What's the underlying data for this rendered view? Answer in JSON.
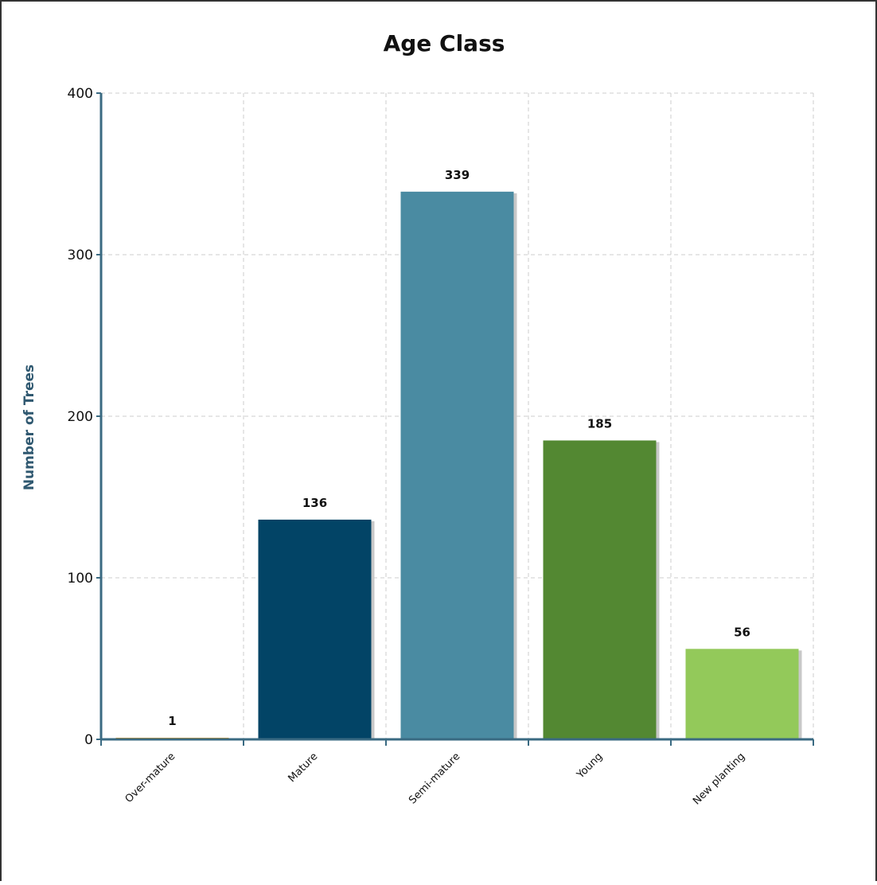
{
  "chart_data": {
    "type": "bar",
    "title": "Age Class",
    "xlabel": "",
    "ylabel": "Number of Trees",
    "categories": [
      "Over-mature",
      "Mature",
      "Semi-mature",
      "Young",
      "New planting"
    ],
    "values": [
      1,
      136,
      339,
      185,
      56
    ],
    "data_labels": [
      "1",
      "136",
      "339",
      "185",
      "56"
    ],
    "colors": [
      "#e8a020",
      "#024466",
      "#4a8ba2",
      "#538832",
      "#93c95a"
    ],
    "ylim": [
      0,
      400
    ],
    "yticks": [
      0,
      100,
      200,
      300,
      400
    ],
    "ytick_labels": [
      "0",
      "100",
      "200",
      "300",
      "400"
    ],
    "grid": true,
    "axis_color": "#3a6a82",
    "ylabel_color": "#2f5870",
    "legend": "none"
  }
}
